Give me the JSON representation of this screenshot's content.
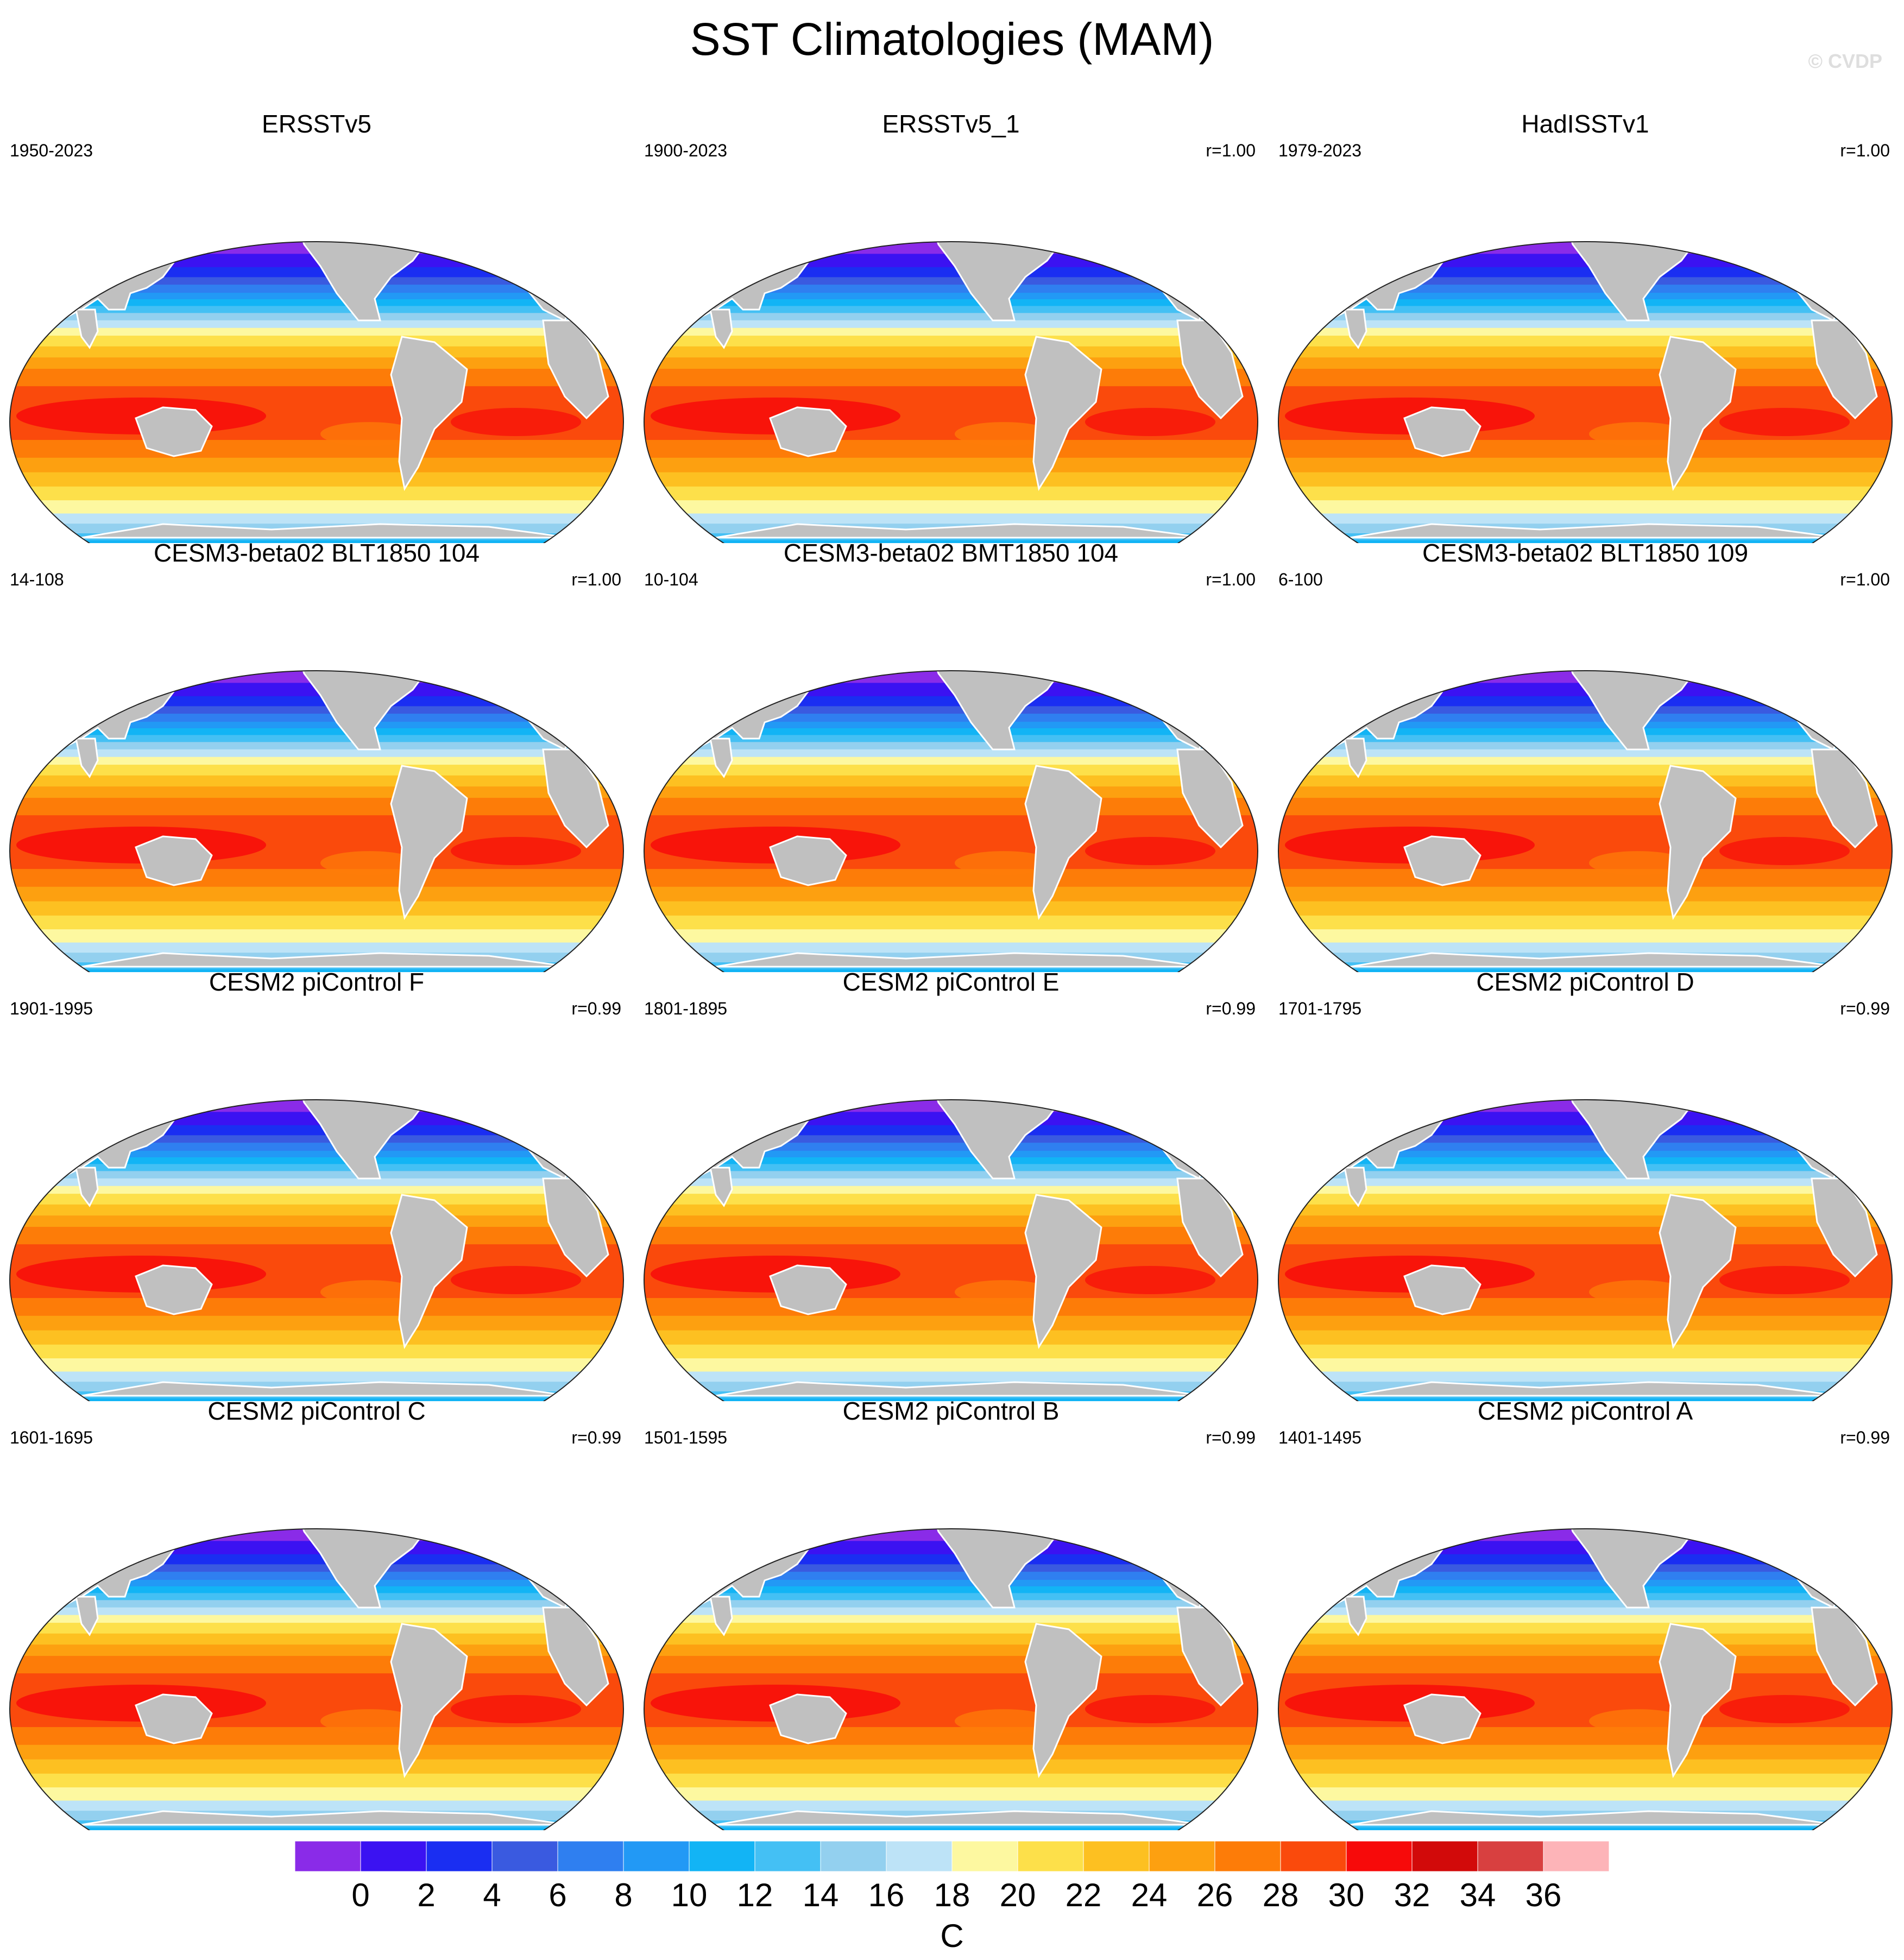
{
  "title": "SST Climatologies (MAM)",
  "watermark": "© CVDP",
  "panels": [
    {
      "name": "ERSSTv5",
      "period": "1950-2023",
      "corr": ""
    },
    {
      "name": "ERSSTv5_1",
      "period": "1900-2023",
      "corr": "r=1.00"
    },
    {
      "name": "HadISSTv1",
      "period": "1979-2023",
      "corr": "r=1.00"
    },
    {
      "name": "CESM3-beta02 BLT1850 104",
      "period": "14-108",
      "corr": "r=1.00"
    },
    {
      "name": "CESM3-beta02 BMT1850 104",
      "period": "10-104",
      "corr": "r=1.00"
    },
    {
      "name": "CESM3-beta02 BLT1850 109",
      "period": "6-100",
      "corr": "r=1.00"
    },
    {
      "name": "CESM2 piControl F",
      "period": "1901-1995",
      "corr": "r=0.99"
    },
    {
      "name": "CESM2 piControl E",
      "period": "1801-1895",
      "corr": "r=0.99"
    },
    {
      "name": "CESM2 piControl D",
      "period": "1701-1795",
      "corr": "r=0.99"
    },
    {
      "name": "CESM2 piControl C",
      "period": "1601-1695",
      "corr": "r=0.99"
    },
    {
      "name": "CESM2 piControl B",
      "period": "1501-1595",
      "corr": "r=0.99"
    },
    {
      "name": "CESM2 piControl A",
      "period": "1401-1495",
      "corr": "r=0.99"
    }
  ],
  "colorbar": {
    "unit": "C",
    "labels": [
      "0",
      "2",
      "4",
      "6",
      "8",
      "10",
      "12",
      "14",
      "16",
      "18",
      "20",
      "22",
      "24",
      "26",
      "28",
      "30",
      "32",
      "34",
      "36"
    ],
    "colors": [
      "#8a2be8",
      "#3b12f2",
      "#1a2ef2",
      "#3a5ae0",
      "#2f7ff0",
      "#2299f5",
      "#12b4f5",
      "#44c0f4",
      "#93d0ef",
      "#bde3f7",
      "#fdf8a0",
      "#fde04a",
      "#fdc021",
      "#fda010",
      "#fd7c08",
      "#fa4a0c",
      "#f70a0a",
      "#d20a0a",
      "#d84040",
      "#fdb4b8"
    ],
    "land_color": "#c0c0c0"
  }
}
